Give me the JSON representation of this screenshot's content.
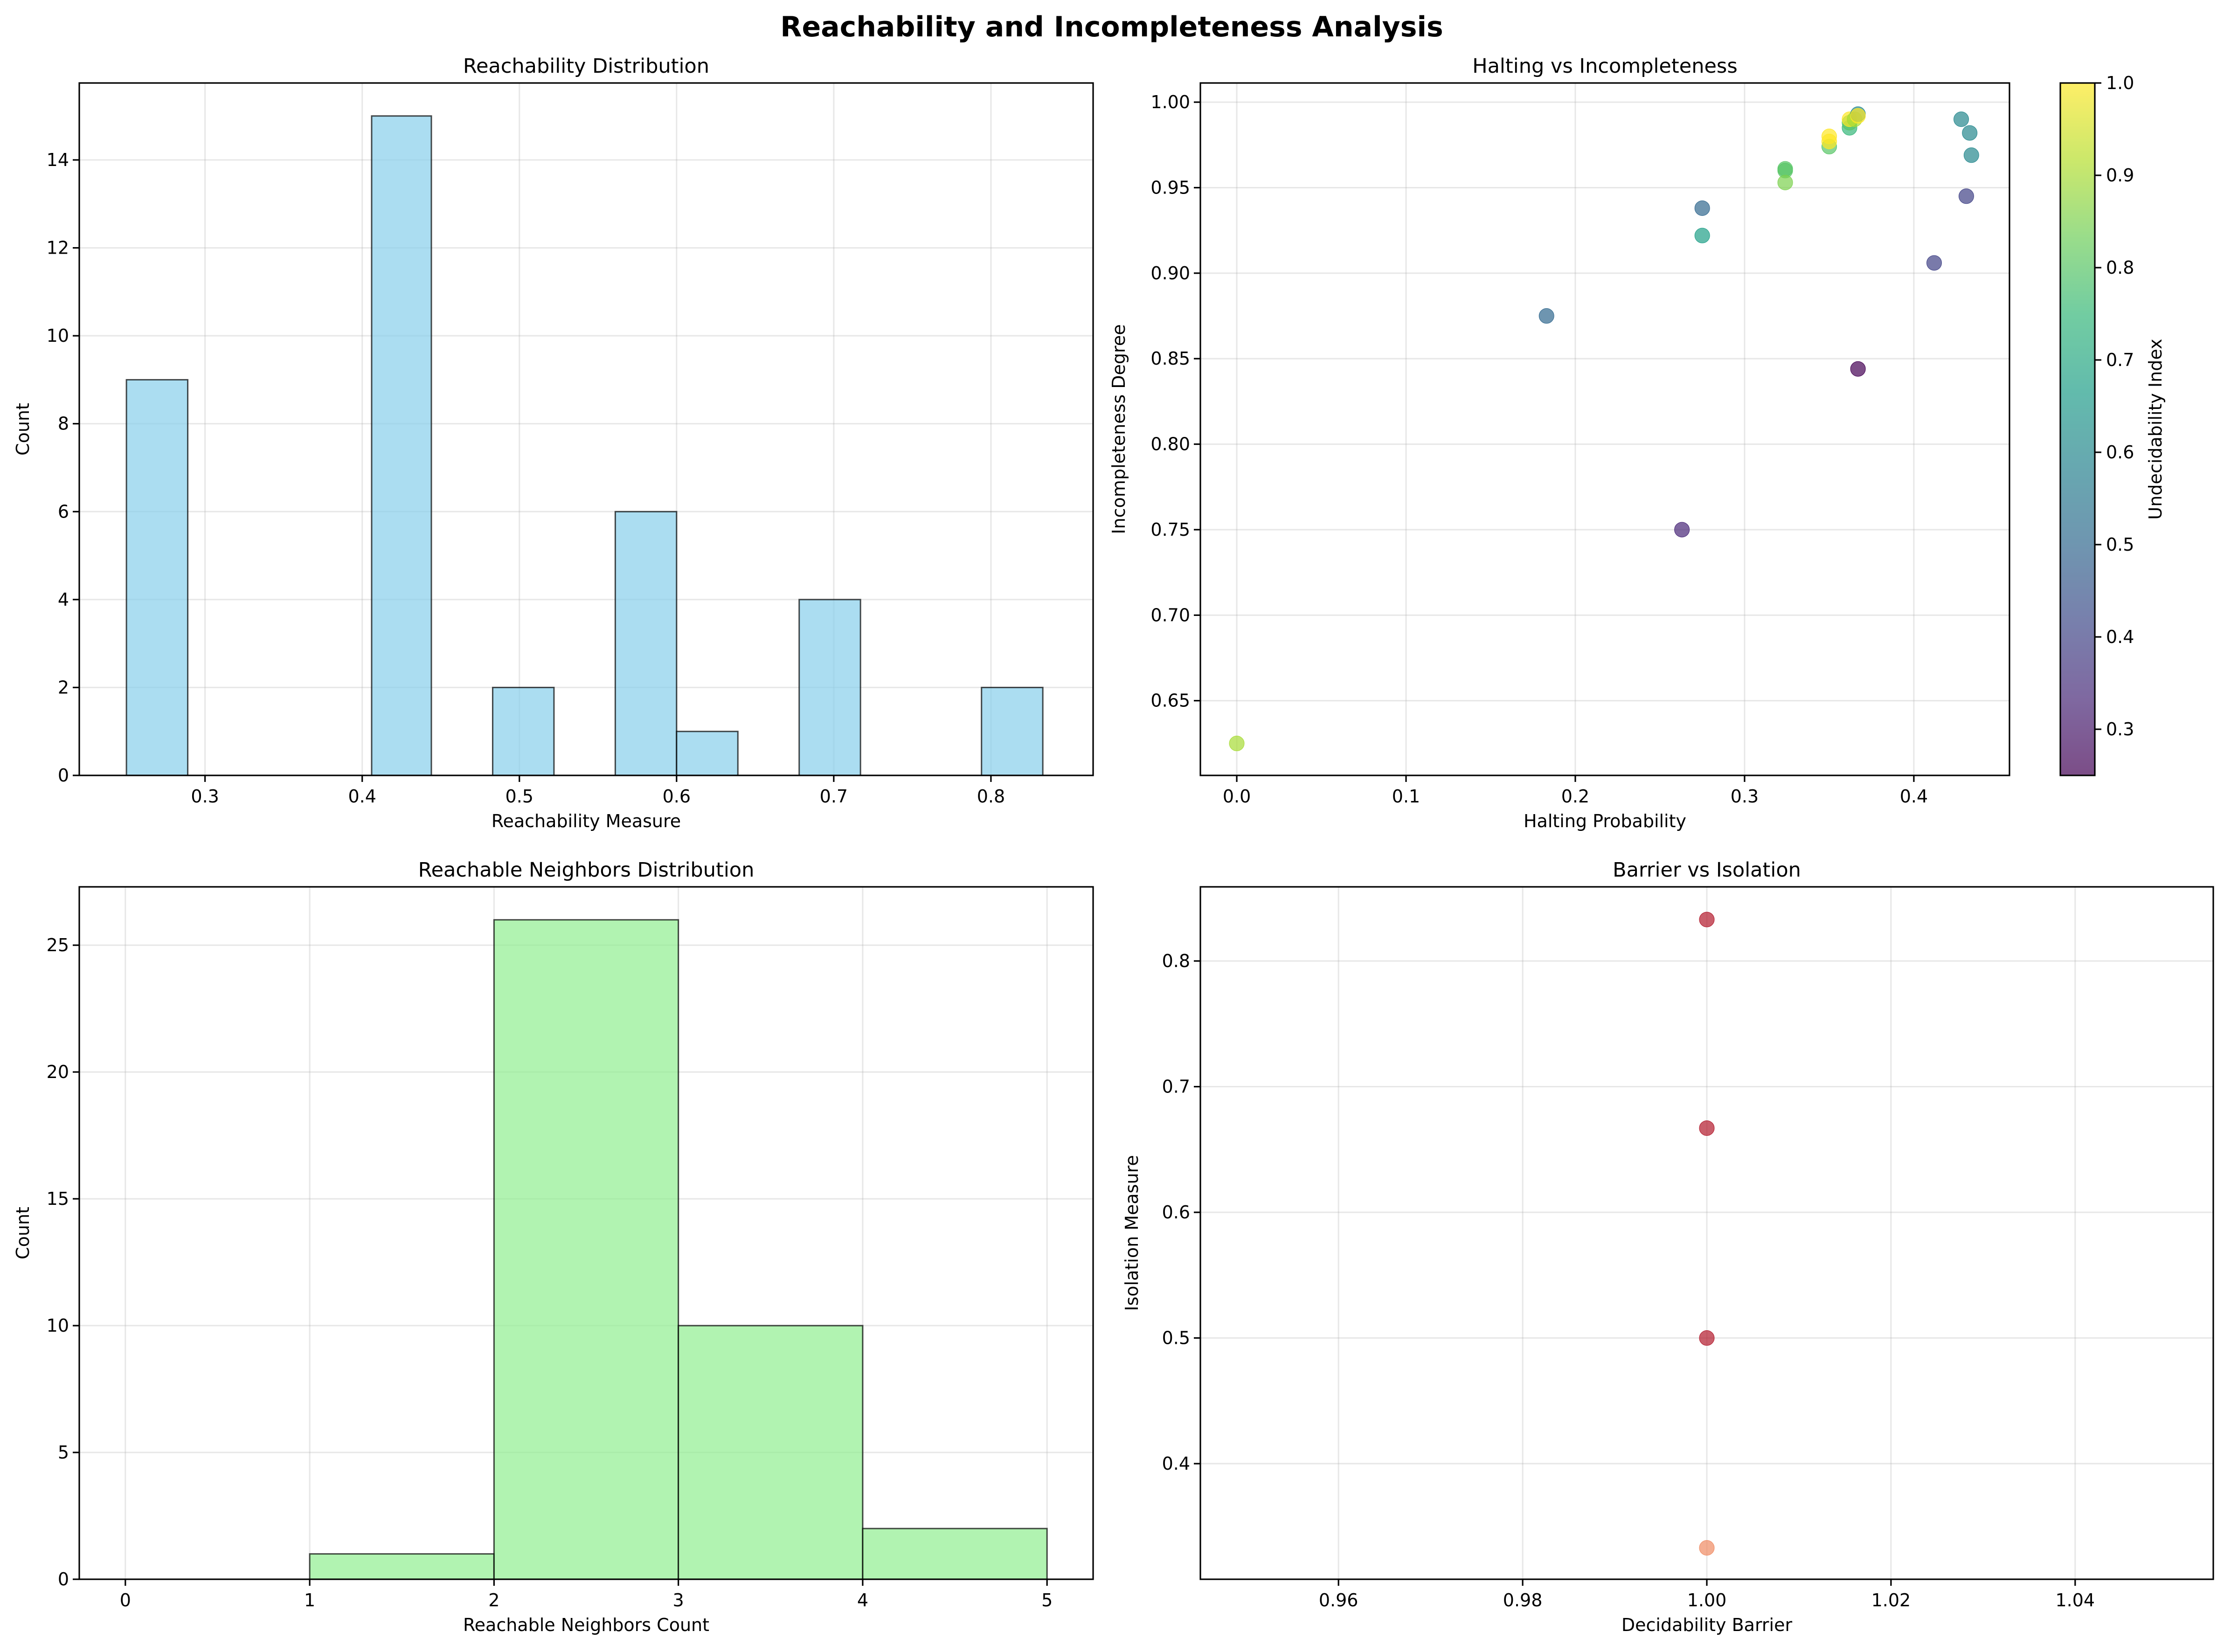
{
  "figure": {
    "title": "Reachability and Incompleteness Analysis"
  },
  "colors": {
    "hist1_fill": "#87ceeb",
    "hist2_fill": "#90ee90",
    "bar_edge": "#000000",
    "viridis": [
      "#440154",
      "#482878",
      "#3e4989",
      "#31688e",
      "#26828e",
      "#1f9e89",
      "#35b779",
      "#6ece58",
      "#b5de2b",
      "#fde725"
    ],
    "isolation_points": "#b2182b",
    "isolation_low_point": "#ef8a62"
  },
  "chart_data": [
    {
      "id": "reach_hist",
      "type": "bar",
      "title": "Reachability Distribution",
      "xlabel": "Reachability Measure",
      "ylabel": "Count",
      "xlim": [
        0.22,
        0.865
      ],
      "ylim": [
        0,
        15.75
      ],
      "xticks": [
        0.3,
        0.4,
        0.5,
        0.6,
        0.7,
        0.8
      ],
      "xtick_labels": [
        "0.3",
        "0.4",
        "0.5",
        "0.6",
        "0.7",
        "0.8"
      ],
      "yticks": [
        0,
        2,
        4,
        6,
        8,
        10,
        12,
        14
      ],
      "ytick_labels": [
        "0",
        "2",
        "4",
        "6",
        "8",
        "10",
        "12",
        "14"
      ],
      "bins": [
        {
          "x0": 0.25,
          "x1": 0.289,
          "count": 9
        },
        {
          "x0": 0.289,
          "x1": 0.328,
          "count": 0
        },
        {
          "x0": 0.328,
          "x1": 0.367,
          "count": 0
        },
        {
          "x0": 0.367,
          "x1": 0.406,
          "count": 0
        },
        {
          "x0": 0.406,
          "x1": 0.444,
          "count": 15
        },
        {
          "x0": 0.444,
          "x1": 0.483,
          "count": 0
        },
        {
          "x0": 0.483,
          "x1": 0.522,
          "count": 2
        },
        {
          "x0": 0.522,
          "x1": 0.561,
          "count": 0
        },
        {
          "x0": 0.561,
          "x1": 0.6,
          "count": 6
        },
        {
          "x0": 0.6,
          "x1": 0.639,
          "count": 1
        },
        {
          "x0": 0.639,
          "x1": 0.678,
          "count": 0
        },
        {
          "x0": 0.678,
          "x1": 0.717,
          "count": 4
        },
        {
          "x0": 0.717,
          "x1": 0.756,
          "count": 0
        },
        {
          "x0": 0.756,
          "x1": 0.794,
          "count": 0
        },
        {
          "x0": 0.794,
          "x1": 0.833,
          "count": 2
        }
      ]
    },
    {
      "id": "halting_scatter",
      "type": "scatter",
      "title": "Halting vs Incompleteness",
      "xlabel": "Halting Probability",
      "ylabel": "Incompleteness Degree",
      "xlim": [
        -0.0215,
        0.4565
      ],
      "ylim": [
        0.6063,
        1.0112
      ],
      "xticks": [
        0.0,
        0.1,
        0.2,
        0.3,
        0.4
      ],
      "xtick_labels": [
        "0.0",
        "0.1",
        "0.2",
        "0.3",
        "0.4"
      ],
      "yticks": [
        0.65,
        0.7,
        0.75,
        0.8,
        0.85,
        0.9,
        0.95,
        1.0
      ],
      "ytick_labels": [
        "0.65",
        "0.70",
        "0.75",
        "0.80",
        "0.85",
        "0.90",
        "0.95",
        "1.00"
      ],
      "colorbar": {
        "label": "Undecidability Index",
        "range": [
          0.25,
          1.0
        ],
        "ticks": [
          0.3,
          0.4,
          0.5,
          0.6,
          0.7,
          0.8,
          0.9,
          1.0
        ],
        "tick_labels": [
          "0.3",
          "0.4",
          "0.5",
          "0.6",
          "0.7",
          "0.8",
          "0.9",
          "1.0"
        ]
      },
      "points": [
        {
          "x": 0.0,
          "y": 0.625,
          "c": 0.9
        },
        {
          "x": 0.183,
          "y": 0.875,
          "c": 0.5
        },
        {
          "x": 0.263,
          "y": 0.75,
          "c": 0.33
        },
        {
          "x": 0.275,
          "y": 0.938,
          "c": 0.5
        },
        {
          "x": 0.275,
          "y": 0.922,
          "c": 0.67
        },
        {
          "x": 0.324,
          "y": 0.961,
          "c": 0.8
        },
        {
          "x": 0.324,
          "y": 0.96,
          "c": 0.8
        },
        {
          "x": 0.324,
          "y": 0.953,
          "c": 0.85
        },
        {
          "x": 0.35,
          "y": 0.974,
          "c": 0.8
        },
        {
          "x": 0.35,
          "y": 0.977,
          "c": 1.0
        },
        {
          "x": 0.35,
          "y": 0.98,
          "c": 1.0
        },
        {
          "x": 0.362,
          "y": 0.985,
          "c": 0.75
        },
        {
          "x": 0.362,
          "y": 0.988,
          "c": 0.8
        },
        {
          "x": 0.362,
          "y": 0.99,
          "c": 1.0
        },
        {
          "x": 0.365,
          "y": 0.99,
          "c": 0.9
        },
        {
          "x": 0.367,
          "y": 0.993,
          "c": 0.6
        },
        {
          "x": 0.367,
          "y": 0.992,
          "c": 1.0
        },
        {
          "x": 0.367,
          "y": 0.844,
          "c": 0.25
        },
        {
          "x": 0.412,
          "y": 0.906,
          "c": 0.4
        },
        {
          "x": 0.428,
          "y": 0.99,
          "c": 0.6
        },
        {
          "x": 0.431,
          "y": 0.945,
          "c": 0.4
        },
        {
          "x": 0.433,
          "y": 0.982,
          "c": 0.6
        },
        {
          "x": 0.434,
          "y": 0.969,
          "c": 0.6
        }
      ]
    },
    {
      "id": "neighbors_hist",
      "type": "bar",
      "title": "Reachable Neighbors Distribution",
      "xlabel": "Reachable Neighbors Count",
      "ylabel": "Count",
      "xlim": [
        -0.25,
        5.25
      ],
      "ylim": [
        0,
        27.3
      ],
      "xticks": [
        0,
        1,
        2,
        3,
        4,
        5
      ],
      "xtick_labels": [
        "0",
        "1",
        "2",
        "3",
        "4",
        "5"
      ],
      "yticks": [
        0,
        5,
        10,
        15,
        20,
        25
      ],
      "ytick_labels": [
        "0",
        "5",
        "10",
        "15",
        "20",
        "25"
      ],
      "bins": [
        {
          "x0": 0,
          "x1": 1,
          "count": 0
        },
        {
          "x0": 1,
          "x1": 2,
          "count": 1
        },
        {
          "x0": 2,
          "x1": 3,
          "count": 26
        },
        {
          "x0": 3,
          "x1": 4,
          "count": 10
        },
        {
          "x0": 4,
          "x1": 5,
          "count": 2
        }
      ]
    },
    {
      "id": "barrier_scatter",
      "type": "scatter",
      "title": "Barrier vs Isolation",
      "xlabel": "Decidability Barrier",
      "ylabel": "Isolation Measure",
      "xlim": [
        0.945,
        1.055
      ],
      "ylim": [
        0.308,
        0.859
      ],
      "xticks": [
        0.96,
        0.98,
        1.0,
        1.02,
        1.04
      ],
      "xtick_labels": [
        "0.96",
        "0.98",
        "1.00",
        "1.02",
        "1.04"
      ],
      "yticks": [
        0.4,
        0.5,
        0.6,
        0.7,
        0.8
      ],
      "ytick_labels": [
        "0.4",
        "0.5",
        "0.6",
        "0.7",
        "0.8"
      ],
      "points": [
        {
          "x": 1.0,
          "y": 0.833
        },
        {
          "x": 1.0,
          "y": 0.667
        },
        {
          "x": 1.0,
          "y": 0.5
        },
        {
          "x": 1.0,
          "y": 0.333
        }
      ]
    }
  ]
}
